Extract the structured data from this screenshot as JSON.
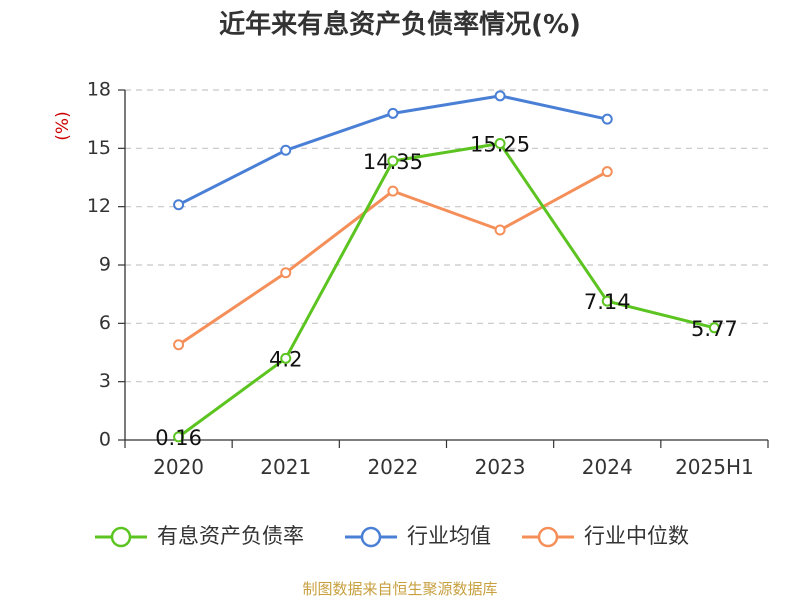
{
  "chart_data": {
    "type": "line",
    "title": "近年来有息资产负债率情况(%)",
    "ylabel": "(%)",
    "ylim": [
      0,
      18
    ],
    "yticks": [
      0,
      3,
      6,
      9,
      12,
      15,
      18
    ],
    "categories": [
      "2020",
      "2021",
      "2022",
      "2023",
      "2024",
      "2025H1"
    ],
    "grid": true,
    "legend_position": "bottom",
    "series": [
      {
        "name": "有息资产负债率",
        "color": "#5cc420",
        "values": [
          0.16,
          4.2,
          14.35,
          15.25,
          7.14,
          5.77
        ],
        "labels": [
          "0.16",
          "4.2",
          "14.35",
          "15.25",
          "7.14",
          "5.77"
        ]
      },
      {
        "name": "行业均值",
        "color": "#4a7fd6",
        "values": [
          12.1,
          14.9,
          16.8,
          17.7,
          16.5,
          null
        ]
      },
      {
        "name": "行业中位数",
        "color": "#f58f5a",
        "values": [
          4.9,
          8.6,
          12.8,
          10.8,
          13.8,
          null
        ]
      }
    ]
  },
  "source": "制图数据来自恒生聚源数据库"
}
